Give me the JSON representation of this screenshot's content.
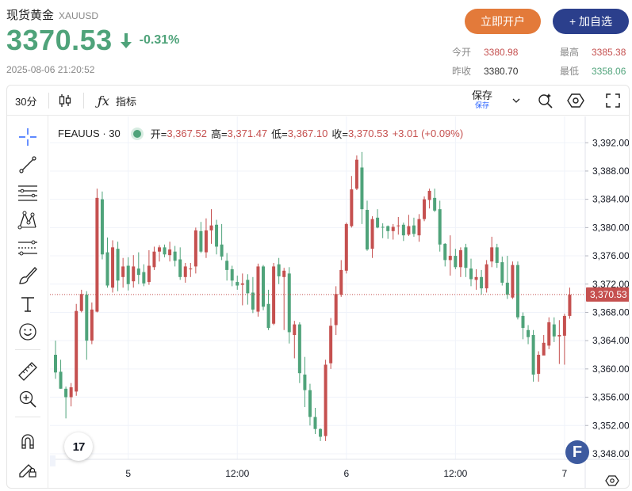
{
  "header": {
    "title": "现货黄金",
    "code": "XAUUSD",
    "price": "3370.53",
    "change_pct": "-0.31%",
    "timestamp": "2025-08-06 21:20:52",
    "open_account_label": "立即开户",
    "add_watch_label": "+ 加自选"
  },
  "stats": {
    "today_open": {
      "label": "今开",
      "value": "3380.98"
    },
    "high": {
      "label": "最高",
      "value": "3385.38"
    },
    "prev_close": {
      "label": "昨收",
      "value": "3380.70"
    },
    "low": {
      "label": "最低",
      "value": "3358.06"
    }
  },
  "toolbar": {
    "interval": "30分",
    "indicators_label": "指标",
    "save_label": "保存",
    "save_sub": "保存"
  },
  "legend": {
    "symbol": "FEAUUS · 30",
    "open_label": "开=",
    "open": "3,367.52",
    "high_label": "高=",
    "high": "3,371.47",
    "low_label": "低=",
    "low": "3,367.10",
    "close_label": "收=",
    "close": "3,370.53",
    "change": "+3.01 (+0.09%)"
  },
  "logo_text": "17",
  "badge_text": "F",
  "colors": {
    "up": "#4fa37a",
    "down": "#c5504f",
    "accent_orange": "#e37a3a",
    "accent_navy": "#2b3f8c"
  },
  "chart_data": {
    "type": "candlestick",
    "current_price": 3370.53,
    "current_price_label": "3,370.53",
    "ylim": [
      3346,
      3394
    ],
    "y_ticks": [
      3348,
      3352,
      3356,
      3360,
      3364,
      3368,
      3372,
      3376,
      3380,
      3384,
      3388,
      3392
    ],
    "y_tick_labels": [
      "3,348.00",
      "3,352.00",
      "3,356.00",
      "3,360.00",
      "3,364.00",
      "3,368.00",
      "3,372.00",
      "3,376.00",
      "3,380.00",
      "3,384.00",
      "3,388.00",
      "3,392.00"
    ],
    "x_ticks": [
      {
        "label": "5",
        "index": 14
      },
      {
        "label": "12:00",
        "index": 35
      },
      {
        "label": "6",
        "index": 56
      },
      {
        "label": "12:00",
        "index": 77
      },
      {
        "label": "7",
        "index": 98
      }
    ],
    "candles": [
      [
        3362,
        3359.5,
        3364,
        3358.6
      ],
      [
        3359.6,
        3357.2,
        3361.3,
        3357.2
      ],
      [
        3357.2,
        3356,
        3357.5,
        3353
      ],
      [
        3356,
        3357.4,
        3358,
        3354.7
      ],
      [
        3356.8,
        3368.2,
        3369.2,
        3356.2
      ],
      [
        3368.2,
        3370.6,
        3371.2,
        3368
      ],
      [
        3370.5,
        3364,
        3371,
        3361.3
      ],
      [
        3364,
        3368.4,
        3369.4,
        3363.5
      ],
      [
        3368.1,
        3384.2,
        3385.5,
        3368
      ],
      [
        3384,
        3376.2,
        3385.1,
        3375.5
      ],
      [
        3376.5,
        3371.8,
        3378.6,
        3371.5
      ],
      [
        3371.5,
        3377.2,
        3378.2,
        3370.8
      ],
      [
        3377,
        3372.5,
        3378,
        3371
      ],
      [
        3373,
        3374.5,
        3375.7,
        3371.5
      ],
      [
        3374.6,
        3372,
        3375.8,
        3371.1
      ],
      [
        3372.4,
        3374.5,
        3376.1,
        3371.5
      ],
      [
        3374.2,
        3373.3,
        3376.5,
        3372
      ],
      [
        3373.7,
        3372.1,
        3374.8,
        3371.7
      ],
      [
        3372.3,
        3374.6,
        3376.8,
        3371.9
      ],
      [
        3374.4,
        3376.6,
        3377.3,
        3374
      ],
      [
        3376.6,
        3377.2,
        3377.5,
        3375.2
      ],
      [
        3377.2,
        3376.2,
        3377.6,
        3375.8
      ],
      [
        3376.1,
        3376.9,
        3378,
        3375.2
      ],
      [
        3376.6,
        3375.3,
        3377.4,
        3374.5
      ],
      [
        3375.5,
        3373,
        3377.2,
        3372.6
      ],
      [
        3373,
        3374.5,
        3375,
        3372.2
      ],
      [
        3374.2,
        3374.2,
        3375,
        3373
      ],
      [
        3374.5,
        3379.6,
        3380,
        3373.5
      ],
      [
        3379.5,
        3376.6,
        3380.8,
        3376.4
      ],
      [
        3376.5,
        3379.6,
        3381.3,
        3375.7
      ],
      [
        3379.6,
        3380.3,
        3382.6,
        3377.7
      ],
      [
        3380.4,
        3377.3,
        3381.1,
        3376.2
      ],
      [
        3377.6,
        3375.9,
        3380.5,
        3375.4
      ],
      [
        3375.3,
        3374,
        3376.4,
        3372.5
      ],
      [
        3374.1,
        3372.5,
        3374.6,
        3371.7
      ],
      [
        3372.3,
        3371.8,
        3373.2,
        3371.2
      ],
      [
        3371.9,
        3372.1,
        3373.5,
        3369
      ],
      [
        3372.6,
        3370.7,
        3373.4,
        3369.1
      ],
      [
        3370.8,
        3368.4,
        3373,
        3367.9
      ],
      [
        3368.1,
        3374.5,
        3374.9,
        3367.4
      ],
      [
        3374.5,
        3368.8,
        3374.7,
        3368.3
      ],
      [
        3369.2,
        3365.8,
        3371.2,
        3365.5
      ],
      [
        3366.4,
        3374.5,
        3375,
        3366.2
      ],
      [
        3374.8,
        3373.1,
        3375.7,
        3372
      ],
      [
        3373,
        3373.9,
        3374.3,
        3365.5
      ],
      [
        3373.5,
        3365.2,
        3374.4,
        3363.6
      ],
      [
        3364.8,
        3366.3,
        3366.8,
        3361.5
      ],
      [
        3366.3,
        3359.4,
        3366.6,
        3358
      ],
      [
        3359.2,
        3357,
        3361.7,
        3354.6
      ],
      [
        3357,
        3353.2,
        3357.9,
        3352
      ],
      [
        3353.2,
        3351.5,
        3354.5,
        3350.8
      ],
      [
        3351.5,
        3350.4,
        3351.6,
        3349.8
      ],
      [
        3350.5,
        3360.6,
        3361.3,
        3349.8
      ],
      [
        3360.8,
        3366.1,
        3367.2,
        3360
      ],
      [
        3366.2,
        3370.6,
        3371.7,
        3364.8
      ],
      [
        3370.5,
        3374,
        3375.4,
        3370.2
      ],
      [
        3373.9,
        3380.5,
        3380.7,
        3373.5
      ],
      [
        3380.2,
        3385.4,
        3387.3,
        3380
      ],
      [
        3385.5,
        3389.6,
        3390.2,
        3385.3
      ],
      [
        3388.5,
        3382.6,
        3390.7,
        3380.5
      ],
      [
        3382.5,
        3376.9,
        3383.8,
        3376.7
      ],
      [
        3377,
        3381.2,
        3381.6,
        3375.7
      ],
      [
        3381.4,
        3380,
        3382.6,
        3379.9
      ],
      [
        3380.1,
        3380,
        3380.6,
        3378.5
      ],
      [
        3380.2,
        3379.5,
        3380.3,
        3378.4
      ],
      [
        3379.5,
        3380.1,
        3380.5,
        3378.3
      ],
      [
        3380.3,
        3380.3,
        3381.5,
        3379
      ],
      [
        3380.4,
        3378.9,
        3380.7,
        3378.1
      ],
      [
        3379,
        3380.2,
        3381.8,
        3378.8
      ],
      [
        3380.3,
        3379.1,
        3381.4,
        3378.7
      ],
      [
        3378.9,
        3381.2,
        3381.9,
        3378
      ],
      [
        3381.2,
        3384,
        3384.4,
        3380.9
      ],
      [
        3383.9,
        3385.2,
        3385.5,
        3382.7
      ],
      [
        3384.2,
        3382.4,
        3385.5,
        3382.2
      ],
      [
        3382.6,
        3377.6,
        3383.8,
        3376.6
      ],
      [
        3377.7,
        3375.4,
        3377.8,
        3374.5
      ],
      [
        3375.4,
        3376,
        3378.9,
        3373.2
      ],
      [
        3376,
        3374.4,
        3377,
        3374.1
      ],
      [
        3374.4,
        3376.8,
        3377.2,
        3373
      ],
      [
        3377.2,
        3374.3,
        3377.7,
        3373
      ],
      [
        3374.2,
        3372.7,
        3375.6,
        3371.7
      ],
      [
        3372.6,
        3373,
        3374.1,
        3371.2
      ],
      [
        3373,
        3371.4,
        3374,
        3370.5
      ],
      [
        3371.4,
        3374.8,
        3375.4,
        3370.8
      ],
      [
        3375.2,
        3377.2,
        3378.7,
        3374.4
      ],
      [
        3377.2,
        3375,
        3377.7,
        3374.3
      ],
      [
        3375.1,
        3372.2,
        3375.9,
        3371.8
      ],
      [
        3372.2,
        3370.5,
        3376,
        3369.9
      ],
      [
        3370.1,
        3374.7,
        3375.2,
        3369.9
      ],
      [
        3374.7,
        3367.3,
        3375.2,
        3367
      ],
      [
        3367.5,
        3365.8,
        3368,
        3364.2
      ],
      [
        3365.5,
        3364.5,
        3366.2,
        3363.5
      ],
      [
        3364.8,
        3359.2,
        3365.5,
        3358.2
      ],
      [
        3359.3,
        3362,
        3362.5,
        3358.2
      ],
      [
        3361.9,
        3363.7,
        3364.8,
        3363
      ],
      [
        3363.3,
        3366.6,
        3367.3,
        3362.8
      ],
      [
        3366.3,
        3364.6,
        3367.3,
        3363.8
      ],
      [
        3364.6,
        3364.8,
        3366.9,
        3360.7
      ],
      [
        3364.7,
        3367.5,
        3367.8,
        3360.6
      ],
      [
        3367.5,
        3370.5,
        3371.5,
        3367.1
      ]
    ]
  }
}
